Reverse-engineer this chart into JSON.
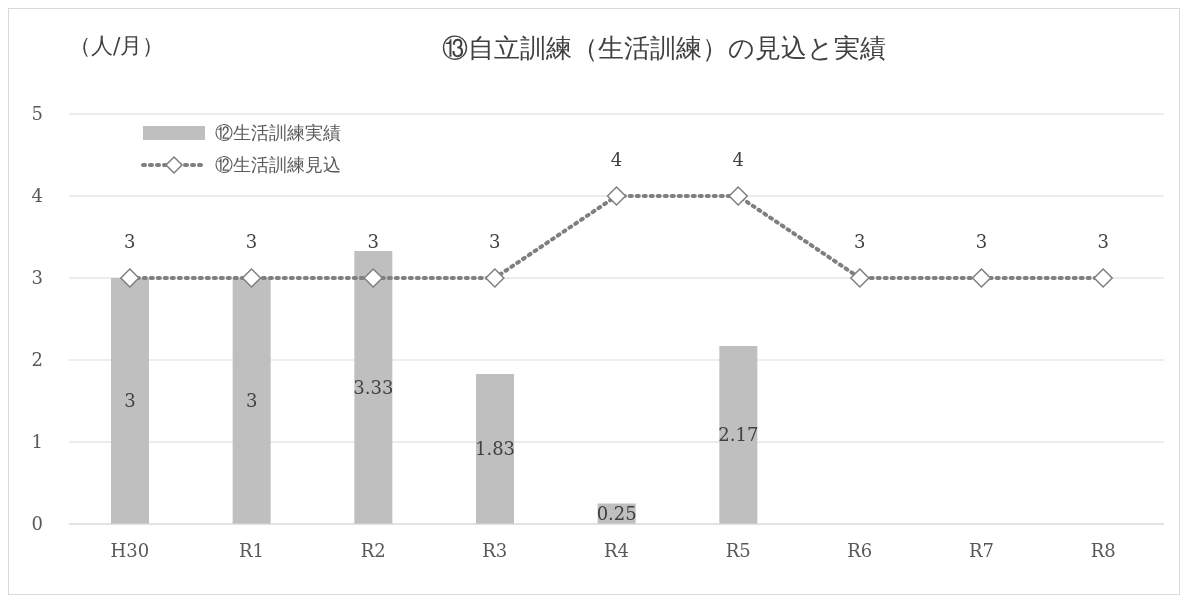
{
  "chart_data": {
    "type": "bar",
    "title": "⑬自立訓練（生活訓練）の見込と実績",
    "ylabel": "（人/月）",
    "categories": [
      "H30",
      "R1",
      "R2",
      "R3",
      "R4",
      "R5",
      "R6",
      "R7",
      "R8"
    ],
    "series": [
      {
        "name": "⑫生活訓練実績",
        "color": "#bfbfbf",
        "values": [
          3,
          3,
          3.33,
          1.83,
          0.25,
          2.17,
          null,
          null,
          null
        ],
        "value_labels": [
          "3",
          "3",
          "3.33",
          "1.83",
          "0.25",
          "2.17",
          null,
          null,
          null
        ]
      },
      {
        "name": "⑫生活訓練見込",
        "type": "line",
        "color": "#7f7f7f",
        "values": [
          3,
          3,
          3,
          3,
          4,
          4,
          3,
          3,
          3
        ],
        "value_labels": [
          "3",
          "3",
          "3",
          "3",
          "4",
          "4",
          "3",
          "3",
          "3"
        ],
        "marker": "diamond",
        "line_style": "dotted"
      }
    ],
    "ylim": [
      0,
      5
    ],
    "yticks": [
      0,
      1,
      2,
      3,
      4,
      5
    ],
    "grid": "y",
    "legend": "top left"
  }
}
